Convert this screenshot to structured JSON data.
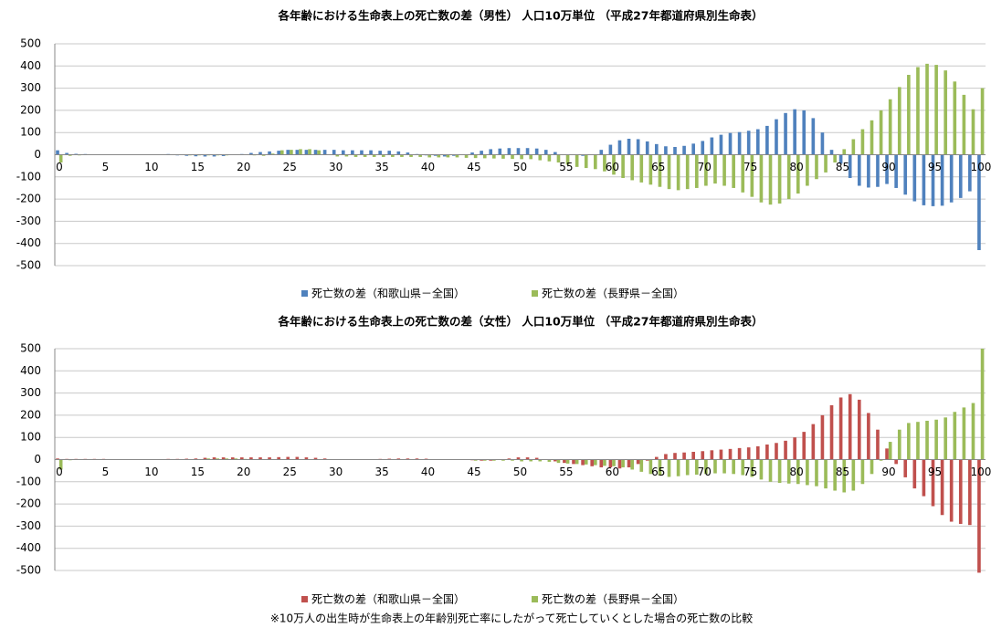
{
  "chart_data": [
    {
      "type": "bar",
      "title": "各年齢における生命表上の死亡数の差（男性） 人口10万単位 （平成27年都道府県別生命表）",
      "categories": [
        "0",
        null,
        null,
        null,
        null,
        "5",
        null,
        null,
        null,
        null,
        "10",
        null,
        null,
        null,
        null,
        "15",
        null,
        null,
        null,
        null,
        "20",
        null,
        null,
        null,
        null,
        "25",
        null,
        null,
        null,
        null,
        "30",
        null,
        null,
        null,
        null,
        "35",
        null,
        null,
        null,
        null,
        "40",
        null,
        null,
        null,
        null,
        "45",
        null,
        null,
        null,
        null,
        "50",
        null,
        null,
        null,
        null,
        "55",
        null,
        null,
        null,
        null,
        "60",
        null,
        null,
        null,
        null,
        "65",
        null,
        null,
        null,
        null,
        "70",
        null,
        null,
        null,
        null,
        "75",
        null,
        null,
        null,
        null,
        "80",
        null,
        null,
        null,
        null,
        "85",
        null,
        null,
        null,
        null,
        "90",
        null,
        null,
        null,
        null,
        "95",
        null,
        null,
        null,
        null,
        "100"
      ],
      "series": [
        {
          "name": "死亡数の差（和歌山県－全国）",
          "color": "#4f81bd",
          "values": [
            20,
            8,
            4,
            3,
            2,
            2,
            1,
            1,
            1,
            1,
            1,
            2,
            3,
            -3,
            -5,
            -7,
            -8,
            -8,
            -6,
            -2,
            3,
            8,
            12,
            15,
            18,
            22,
            22,
            22,
            22,
            22,
            22,
            20,
            20,
            20,
            20,
            18,
            18,
            15,
            10,
            3,
            -3,
            -5,
            -8,
            -5,
            2,
            10,
            18,
            25,
            28,
            30,
            30,
            30,
            28,
            22,
            12,
            2,
            -2,
            -5,
            2,
            22,
            45,
            65,
            72,
            70,
            60,
            48,
            38,
            35,
            40,
            50,
            62,
            78,
            90,
            98,
            102,
            108,
            115,
            130,
            160,
            188,
            205,
            200,
            165,
            100,
            22,
            -40,
            -105,
            -140,
            -148,
            -145,
            -132,
            -150,
            -180,
            -210,
            -228,
            -232,
            -230,
            -215,
            -195,
            -165,
            -430
          ]
        },
        {
          "name": "死亡数の差（長野県－全国）",
          "color": "#9bbb59",
          "values": [
            -35,
            -5,
            -3,
            -2,
            -2,
            -2,
            -1,
            -1,
            -1,
            -1,
            -1,
            -1,
            -2,
            -2,
            -3,
            -3,
            -3,
            -3,
            -3,
            -2,
            -2,
            -3,
            -5,
            5,
            20,
            22,
            25,
            25,
            20,
            -2,
            -8,
            -8,
            -10,
            -10,
            -10,
            -10,
            -10,
            -10,
            -10,
            -10,
            -12,
            -12,
            -12,
            -12,
            -14,
            -15,
            -16,
            -17,
            -18,
            -19,
            -20,
            -20,
            -25,
            -30,
            -35,
            -45,
            -55,
            -60,
            -65,
            -75,
            -90,
            -105,
            -115,
            -125,
            -135,
            -145,
            -155,
            -160,
            -155,
            -150,
            -140,
            -130,
            -140,
            -150,
            -170,
            -190,
            -215,
            -225,
            -220,
            -200,
            -175,
            -140,
            -110,
            -80,
            -35,
            25,
            70,
            115,
            155,
            200,
            250,
            305,
            360,
            395,
            410,
            405,
            380,
            330,
            270,
            205,
            300
          ]
        }
      ],
      "ylim": [
        -500,
        500
      ],
      "yticks": [
        -500,
        -400,
        -300,
        -200,
        -100,
        0,
        100,
        200,
        300,
        400,
        500
      ],
      "grid": true
    },
    {
      "type": "bar",
      "title": "各年齢における生命表上の死亡数の差（女性） 人口10万単位 （平成27年都道府県別生命表）",
      "categories": [
        "0",
        null,
        null,
        null,
        null,
        "5",
        null,
        null,
        null,
        null,
        "10",
        null,
        null,
        null,
        null,
        "15",
        null,
        null,
        null,
        null,
        "20",
        null,
        null,
        null,
        null,
        "25",
        null,
        null,
        null,
        null,
        "30",
        null,
        null,
        null,
        null,
        "35",
        null,
        null,
        null,
        null,
        "40",
        null,
        null,
        null,
        null,
        "45",
        null,
        null,
        null,
        null,
        "50",
        null,
        null,
        null,
        null,
        "55",
        null,
        null,
        null,
        null,
        "60",
        null,
        null,
        null,
        null,
        "65",
        null,
        null,
        null,
        null,
        "70",
        null,
        null,
        null,
        null,
        "75",
        null,
        null,
        null,
        null,
        "80",
        null,
        null,
        null,
        null,
        "85",
        null,
        null,
        null,
        null,
        "90",
        null,
        null,
        null,
        null,
        "95",
        null,
        null,
        null,
        null,
        "100"
      ],
      "series": [
        {
          "name": "死亡数の差（和歌山県－全国）",
          "color": "#c0504d",
          "values": [
            5,
            3,
            3,
            3,
            3,
            3,
            2,
            2,
            2,
            2,
            2,
            2,
            3,
            3,
            4,
            5,
            8,
            10,
            10,
            10,
            10,
            10,
            10,
            10,
            11,
            12,
            12,
            10,
            8,
            5,
            2,
            1,
            0,
            0,
            1,
            3,
            4,
            5,
            5,
            5,
            4,
            2,
            1,
            0,
            -2,
            -3,
            -5,
            -5,
            2,
            5,
            10,
            10,
            8,
            2,
            -8,
            -15,
            -20,
            -25,
            -30,
            -35,
            -35,
            -40,
            -35,
            -20,
            -5,
            12,
            25,
            30,
            32,
            35,
            38,
            42,
            45,
            48,
            52,
            55,
            60,
            68,
            75,
            85,
            100,
            125,
            160,
            200,
            245,
            280,
            295,
            270,
            210,
            135,
            50,
            -20,
            -80,
            -130,
            -165,
            -210,
            -250,
            -280,
            -290,
            -295,
            -510
          ]
        },
        {
          "name": "死亡数の差（長野県－全国）",
          "color": "#9bbb59",
          "values": [
            -45,
            -3,
            -2,
            -2,
            -2,
            -1,
            -1,
            -1,
            -1,
            -1,
            -1,
            -1,
            -1,
            0,
            1,
            2,
            5,
            5,
            5,
            5,
            3,
            2,
            -2,
            -2,
            -2,
            -2,
            -2,
            -2,
            -2,
            -2,
            -2,
            -2,
            -2,
            -2,
            -2,
            -2,
            -2,
            -2,
            -2,
            -2,
            -2,
            -2,
            -2,
            -2,
            -2,
            -5,
            -5,
            -5,
            -5,
            -5,
            -8,
            -8,
            -8,
            -10,
            -15,
            -18,
            -20,
            -22,
            -25,
            -28,
            -30,
            -35,
            -45,
            -55,
            -65,
            -72,
            -78,
            -75,
            -70,
            -68,
            -65,
            -62,
            -62,
            -65,
            -70,
            -78,
            -90,
            -100,
            -105,
            -108,
            -110,
            -115,
            -120,
            -130,
            -140,
            -148,
            -140,
            -110,
            -65,
            -5,
            80,
            135,
            165,
            170,
            175,
            180,
            190,
            215,
            235,
            255,
            500
          ]
        }
      ],
      "ylim": [
        -500,
        500
      ],
      "yticks": [
        -500,
        -400,
        -300,
        -200,
        -100,
        0,
        100,
        200,
        300,
        400,
        500
      ],
      "grid": true
    }
  ],
  "note": "※10万人の出生時が生命表上の年齢別死亡率にしたがって死亡していくとした場合の死亡数の比較"
}
